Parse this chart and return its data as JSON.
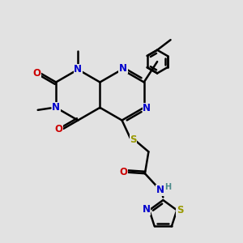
{
  "bg_color": "#e2e2e2",
  "bond_color": "#000000",
  "N_color": "#0000cc",
  "O_color": "#cc0000",
  "S_color": "#999900",
  "H_color": "#4a8a8a",
  "bond_width": 1.8,
  "figsize": [
    3.0,
    3.0
  ],
  "dpi": 100,
  "font_size": 8.5,
  "font_size_small": 7.0,
  "xlim": [
    0,
    10
  ],
  "ylim": [
    0,
    10
  ]
}
